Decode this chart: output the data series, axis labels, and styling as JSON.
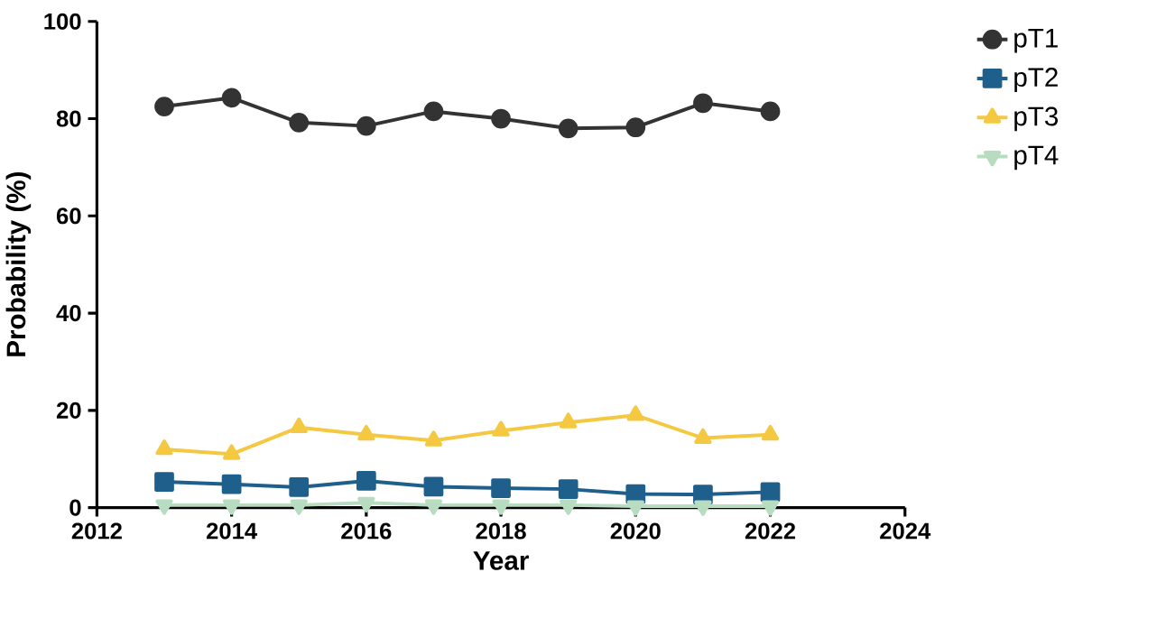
{
  "chart_data": {
    "type": "line",
    "xlabel": "Year",
    "ylabel": "Probability (%)",
    "x": [
      2013,
      2014,
      2015,
      2016,
      2017,
      2018,
      2019,
      2020,
      2021,
      2022
    ],
    "series": [
      {
        "name": "pT1",
        "color": "#333333",
        "marker": "circle",
        "values": [
          82.5,
          84.3,
          79.2,
          78.5,
          81.5,
          80,
          78,
          78.2,
          83.2,
          81.5
        ]
      },
      {
        "name": "pT2",
        "color": "#1f5f8b",
        "marker": "square",
        "values": [
          5.3,
          4.8,
          4.2,
          5.5,
          4.3,
          4,
          3.8,
          2.8,
          2.7,
          3.2
        ]
      },
      {
        "name": "pT3",
        "color": "#f5c842",
        "marker": "triangle",
        "values": [
          12,
          11,
          16.5,
          15,
          13.8,
          15.8,
          17.5,
          19,
          14.3,
          15
        ]
      },
      {
        "name": "pT4",
        "color": "#b8dcc0",
        "marker": "triangle_down",
        "values": [
          0.5,
          0.5,
          0.5,
          1,
          0.5,
          0.5,
          0.5,
          0.3,
          0.3,
          0.3
        ]
      }
    ],
    "xlim": [
      2012,
      2024
    ],
    "xticks": [
      2012,
      2014,
      2016,
      2018,
      2020,
      2022,
      2024
    ],
    "ylim": [
      0,
      100
    ],
    "yticks": [
      0,
      20,
      40,
      60,
      80,
      100
    ],
    "grid": false,
    "legend": "right",
    "line_style": "solid"
  }
}
